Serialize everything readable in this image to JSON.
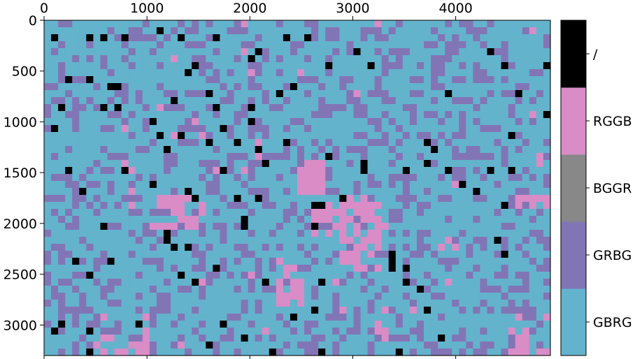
{
  "chart_data": {
    "type": "heatmap",
    "title": "",
    "xlabel": "",
    "ylabel": "",
    "x_axis_position": "top",
    "xlim": [
      0,
      4920
    ],
    "ylim": [
      3300,
      0
    ],
    "x_ticks": [
      0,
      1000,
      2000,
      3000,
      4000
    ],
    "x_tick_labels": [
      "0",
      "1000",
      "2000",
      "3000",
      "4000"
    ],
    "y_ticks": [
      0,
      500,
      1000,
      1500,
      2000,
      2500,
      3000
    ],
    "y_tick_labels": [
      "0",
      "500",
      "1000",
      "1500",
      "2000",
      "2500",
      "3000"
    ],
    "grid_cols": 72,
    "grid_rows": 48,
    "grid": false,
    "colorbar": {
      "placement": "right",
      "categories": [
        {
          "label": "GBRG",
          "color": "#63b3cc"
        },
        {
          "label": "GRBG",
          "color": "#8275b6"
        },
        {
          "label": "BGGR",
          "color": "#888888"
        },
        {
          "label": "RGGB",
          "color": "#d98cc6"
        },
        {
          "label": "/",
          "color": "#000000"
        }
      ]
    },
    "dominant_category": "GBRG",
    "purple_scatter_share": 0.28,
    "pink_regions": [
      {
        "x0": 1000,
        "x1": 1550,
        "y0": 1720,
        "y1": 2050,
        "density": 0.45
      },
      {
        "x0": 1350,
        "x1": 1450,
        "y0": 1750,
        "y1": 1800,
        "density": 0.9
      },
      {
        "x0": 1900,
        "x1": 2100,
        "y0": 1150,
        "y1": 1500,
        "density": 0.35
      },
      {
        "x0": 2450,
        "x1": 2750,
        "y0": 1400,
        "y1": 1700,
        "density": 0.8
      },
      {
        "x0": 2250,
        "x1": 2500,
        "y0": 2350,
        "y1": 2800,
        "density": 0.6
      },
      {
        "x0": 2600,
        "x1": 2850,
        "y0": 1800,
        "y1": 2150,
        "density": 0.6
      },
      {
        "x0": 2900,
        "x1": 3300,
        "y0": 1750,
        "y1": 2450,
        "density": 0.75
      },
      {
        "x0": 4600,
        "x1": 4900,
        "y0": 1700,
        "y1": 1850,
        "density": 0.7
      },
      {
        "x0": 4500,
        "x1": 4900,
        "y0": 2900,
        "y1": 3300,
        "density": 0.3
      },
      {
        "x0": 500,
        "x1": 1000,
        "y0": 2900,
        "y1": 3300,
        "density": 0.3
      },
      {
        "x0": 3150,
        "x1": 3350,
        "y0": 2850,
        "y1": 3150,
        "density": 0.35
      }
    ],
    "black_cells": [
      [
        75,
        150
      ],
      [
        475,
        200
      ],
      [
        550,
        150
      ],
      [
        800,
        200
      ],
      [
        1125,
        75
      ],
      [
        1350,
        175
      ],
      [
        2375,
        200
      ],
      [
        2575,
        150
      ],
      [
        1650,
        175
      ],
      [
        2050,
        275
      ],
      [
        2025,
        350
      ],
      [
        2750,
        425
      ],
      [
        3025,
        325
      ],
      [
        4350,
        275
      ],
      [
        4475,
        475
      ],
      [
        4975,
        450
      ],
      [
        3150,
        475
      ],
      [
        225,
        550
      ],
      [
        425,
        600
      ],
      [
        650,
        650
      ],
      [
        725,
        625
      ],
      [
        1400,
        525
      ],
      [
        1475,
        475
      ],
      [
        2425,
        625
      ],
      [
        2275,
        725
      ],
      [
        1700,
        825
      ],
      [
        1575,
        725
      ],
      [
        1275,
        775
      ],
      [
        4600,
        750
      ],
      [
        3925,
        750
      ],
      [
        2025,
        825
      ],
      [
        175,
        875
      ],
      [
        600,
        875
      ],
      [
        725,
        875
      ],
      [
        1050,
        1025
      ],
      [
        1125,
        1125
      ],
      [
        1350,
        1125
      ],
      [
        1200,
        1275
      ],
      [
        1625,
        1175
      ],
      [
        1725,
        1075
      ],
      [
        1875,
        1200
      ],
      [
        2075,
        1275
      ],
      [
        2375,
        1175
      ],
      [
        2800,
        1325
      ],
      [
        3125,
        1375
      ],
      [
        3700,
        1375
      ],
      [
        3825,
        1300
      ],
      [
        3700,
        1225
      ],
      [
        4525,
        1125
      ],
      [
        4900,
        925
      ],
      [
        125,
        1050
      ],
      [
        2000,
        1000
      ],
      [
        225,
        1500
      ],
      [
        775,
        1500
      ],
      [
        1025,
        1625
      ],
      [
        1750,
        1500
      ],
      [
        2175,
        1425
      ],
      [
        2625,
        1825
      ],
      [
        2875,
        1750
      ],
      [
        3075,
        1500
      ],
      [
        3500,
        1500
      ],
      [
        3925,
        1500
      ],
      [
        4350,
        1500
      ],
      [
        4525,
        1500
      ],
      [
        4075,
        1625
      ],
      [
        4225,
        1700
      ],
      [
        4500,
        1825
      ],
      [
        350,
        1700
      ],
      [
        1375,
        1700
      ],
      [
        1450,
        1775
      ],
      [
        1900,
        1775
      ],
      [
        2100,
        1775
      ],
      [
        1925,
        1975
      ],
      [
        1925,
        2050
      ],
      [
        550,
        2025
      ],
      [
        1225,
        2075
      ],
      [
        1175,
        2175
      ],
      [
        1250,
        2250
      ],
      [
        1425,
        2225
      ],
      [
        1675,
        2425
      ],
      [
        2625,
        2025
      ],
      [
        2675,
        1825
      ],
      [
        3375,
        2375
      ],
      [
        3375,
        2450
      ],
      [
        3500,
        2450
      ],
      [
        3500,
        2550
      ],
      [
        3350,
        2300
      ],
      [
        3675,
        2650
      ],
      [
        4425,
        2150
      ],
      [
        4475,
        2275
      ],
      [
        275,
        2400
      ],
      [
        475,
        2475
      ],
      [
        675,
        2400
      ],
      [
        1300,
        2525
      ],
      [
        1475,
        2575
      ],
      [
        2175,
        2550
      ],
      [
        2725,
        2575
      ],
      [
        3725,
        2875
      ],
      [
        200,
        2975
      ],
      [
        950,
        2975
      ],
      [
        1725,
        3000
      ],
      [
        2425,
        2900
      ],
      [
        2600,
        2825
      ],
      [
        100,
        3075
      ],
      [
        475,
        3075
      ],
      [
        1575,
        3175
      ],
      [
        1925,
        3125
      ],
      [
        3875,
        3125
      ],
      [
        475,
        3300
      ],
      [
        2250,
        3300
      ],
      [
        2725,
        3275
      ],
      [
        3425,
        3300
      ]
    ]
  }
}
